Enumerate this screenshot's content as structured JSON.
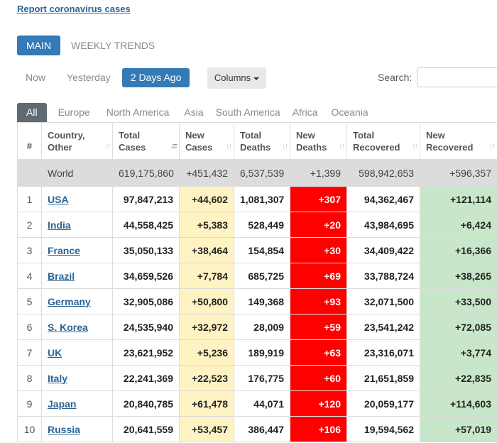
{
  "report_link": "Report coronavirus cases",
  "main_tabs": [
    "MAIN",
    "WEEKLY TRENDS"
  ],
  "day_tabs": [
    "Now",
    "Yesterday",
    "2 Days Ago"
  ],
  "columns_button": "Columns",
  "search_label": "Search:",
  "region_tabs": [
    "All",
    "Europe",
    "North America",
    "Asia",
    "South America",
    "Africa",
    "Oceania"
  ],
  "headers": {
    "rank": "#",
    "country": [
      "Country,",
      "Other"
    ],
    "total_cases": [
      "Total",
      "Cases"
    ],
    "new_cases": [
      "New",
      "Cases"
    ],
    "total_deaths": [
      "Total",
      "Deaths"
    ],
    "new_deaths": [
      "New",
      "Deaths"
    ],
    "total_recovered": [
      "Total",
      "Recovered"
    ],
    "new_recovered": [
      "New",
      "Recovered"
    ]
  },
  "world": {
    "label": "World",
    "total_cases": "619,175,860",
    "new_cases": "+451,432",
    "total_deaths": "6,537,539",
    "new_deaths": "+1,399",
    "total_recovered": "598,942,653",
    "new_recovered": "+596,357"
  },
  "rows": [
    {
      "rank": "1",
      "country": "USA",
      "total_cases": "97,847,213",
      "new_cases": "+44,602",
      "total_deaths": "1,081,307",
      "new_deaths": "+307",
      "total_recovered": "94,362,467",
      "new_recovered": "+121,114"
    },
    {
      "rank": "2",
      "country": "India",
      "total_cases": "44,558,425",
      "new_cases": "+5,383",
      "total_deaths": "528,449",
      "new_deaths": "+20",
      "total_recovered": "43,984,695",
      "new_recovered": "+6,424"
    },
    {
      "rank": "3",
      "country": "France",
      "total_cases": "35,050,133",
      "new_cases": "+38,464",
      "total_deaths": "154,854",
      "new_deaths": "+30",
      "total_recovered": "34,409,422",
      "new_recovered": "+16,366"
    },
    {
      "rank": "4",
      "country": "Brazil",
      "total_cases": "34,659,526",
      "new_cases": "+7,784",
      "total_deaths": "685,725",
      "new_deaths": "+69",
      "total_recovered": "33,788,724",
      "new_recovered": "+38,265"
    },
    {
      "rank": "5",
      "country": "Germany",
      "total_cases": "32,905,086",
      "new_cases": "+50,800",
      "total_deaths": "149,368",
      "new_deaths": "+93",
      "total_recovered": "32,071,500",
      "new_recovered": "+33,500"
    },
    {
      "rank": "6",
      "country": "S. Korea",
      "total_cases": "24,535,940",
      "new_cases": "+32,972",
      "total_deaths": "28,009",
      "new_deaths": "+59",
      "total_recovered": "23,541,242",
      "new_recovered": "+72,085"
    },
    {
      "rank": "7",
      "country": "UK",
      "total_cases": "23,621,952",
      "new_cases": "+5,236",
      "total_deaths": "189,919",
      "new_deaths": "+63",
      "total_recovered": "23,316,071",
      "new_recovered": "+3,774"
    },
    {
      "rank": "8",
      "country": "Italy",
      "total_cases": "22,241,369",
      "new_cases": "+22,523",
      "total_deaths": "176,775",
      "new_deaths": "+60",
      "total_recovered": "21,651,859",
      "new_recovered": "+22,835"
    },
    {
      "rank": "9",
      "country": "Japan",
      "total_cases": "20,840,785",
      "new_cases": "+61,478",
      "total_deaths": "44,071",
      "new_deaths": "+120",
      "total_recovered": "20,059,177",
      "new_recovered": "+114,603"
    },
    {
      "rank": "10",
      "country": "Russia",
      "total_cases": "20,641,559",
      "new_cases": "+53,457",
      "total_deaths": "386,447",
      "new_deaths": "+106",
      "total_recovered": "19,594,562",
      "new_recovered": "+57,019"
    }
  ],
  "colors": {
    "accent": "#337ab7",
    "link": "#2a6496",
    "new_cases_bg": "#fff3c3",
    "new_deaths_bg": "#ff0000",
    "new_recovered_bg": "#c8e6c9",
    "world_row_bg": "#dcdcdc",
    "region_tab_active": "#606a72"
  }
}
